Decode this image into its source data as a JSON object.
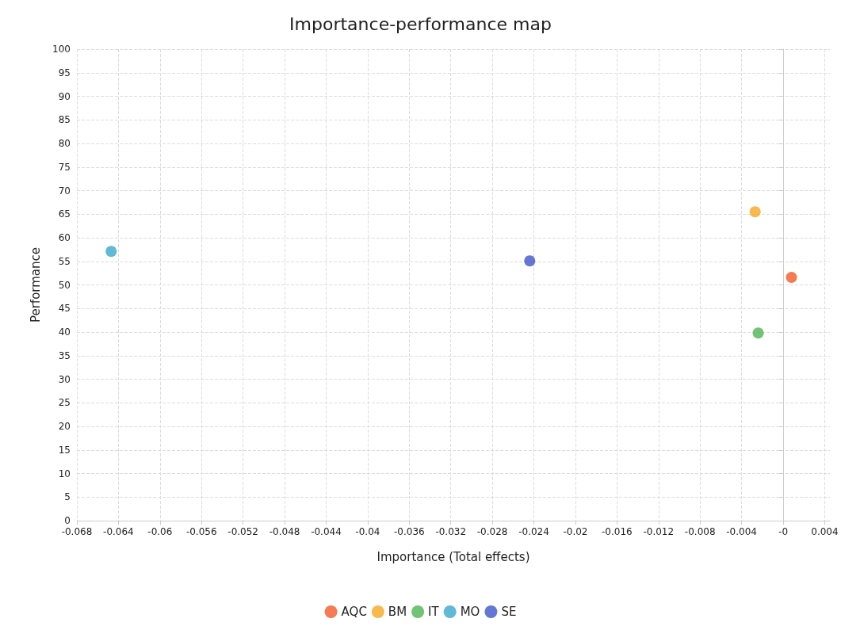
{
  "chart_data": {
    "type": "scatter",
    "title": "Importance-performance map",
    "xlabel": "Importance (Total effects)",
    "ylabel": "Performance",
    "series": [
      {
        "name": "AQC",
        "color": "#f15a29",
        "x": [
          0.0008
        ],
        "values": [
          51.6
        ]
      },
      {
        "name": "BM",
        "color": "#f7a823",
        "x": [
          -0.0027
        ],
        "values": [
          65.5
        ]
      },
      {
        "name": "IT",
        "color": "#4db453",
        "x": [
          -0.0024
        ],
        "values": [
          39.8
        ]
      },
      {
        "name": "MO",
        "color": "#3aa8cb",
        "x": [
          -0.0647
        ],
        "values": [
          57.1
        ]
      },
      {
        "name": "SE",
        "color": "#3f55c8",
        "x": [
          -0.0244
        ],
        "values": [
          55.1
        ]
      }
    ],
    "xlim": [
      -0.068,
      0.0045
    ],
    "ylim": [
      0,
      100
    ],
    "xticks": [
      -0.068,
      -0.064,
      -0.06,
      -0.056,
      -0.052,
      -0.048,
      -0.044,
      -0.04,
      -0.036,
      -0.032,
      -0.028,
      -0.024,
      -0.02,
      -0.016,
      -0.012,
      -0.008,
      -0.004,
      {
        "value": 0,
        "label": "-0"
      },
      0.004
    ],
    "yticks": [
      0,
      5,
      10,
      15,
      20,
      25,
      30,
      35,
      40,
      45,
      50,
      55,
      60,
      65,
      70,
      75,
      80,
      85,
      90,
      95,
      100
    ],
    "grid": true,
    "legend": "bottom",
    "marker": "circle"
  }
}
